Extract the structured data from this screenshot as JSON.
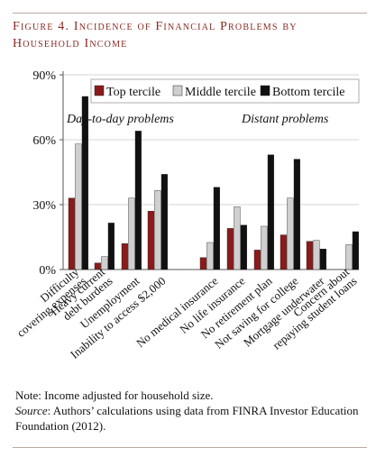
{
  "figure": {
    "title": "Figure 4. Incidence of Financial Problems by Household Income",
    "note": "Note: Income adjusted for household size.",
    "source_label": "Source",
    "source_text": ": Authors’ calculations using data from FINRA Investor Education Foundation (2012)."
  },
  "colors": {
    "top": "#8b1a1a",
    "middle": "#cfcfcf",
    "bottom": "#111111",
    "axis": "#555555",
    "title": "#8a2a21"
  },
  "chart_data": {
    "type": "bar",
    "title": "Figure 4. Incidence of Financial Problems by Household Income",
    "xlabel": "",
    "ylabel": "",
    "ylim": [
      0,
      90
    ],
    "yticks": [
      "0%",
      "30%",
      "60%",
      "90%"
    ],
    "ytick_values": [
      0,
      30,
      60,
      90
    ],
    "legend_position": "top-right",
    "group_labels": [
      "Day-to-day problems",
      "Distant problems"
    ],
    "categories": [
      "Difficulty covering expenses",
      "Heavy current debt burdens",
      "Unemployment",
      "Inability to access $2,000",
      "No medical insurance",
      "No life insurance",
      "No retirement plan",
      "Not saving for college",
      "Mortgage underwater",
      "Concern about repaying student loans"
    ],
    "category_lines": [
      [
        "Difficulty",
        "covering expenses"
      ],
      [
        "Heavy current",
        "debt burdens"
      ],
      [
        "Unemployment"
      ],
      [
        "Inability to access $2,000"
      ],
      [
        "No medical insurance"
      ],
      [
        "No life insurance"
      ],
      [
        "No retirement plan"
      ],
      [
        "Not saving for college"
      ],
      [
        "Mortgage underwater"
      ],
      [
        "Concern about",
        "repaying student loans"
      ]
    ],
    "series": [
      {
        "name": "Top tercile",
        "values": [
          33,
          3,
          12,
          27,
          5.5,
          19,
          9,
          16,
          13,
          0
        ]
      },
      {
        "name": "Middle tercile",
        "values": [
          58,
          6,
          33,
          36.5,
          12.5,
          29,
          20,
          33,
          13.5,
          11.5
        ]
      },
      {
        "name": "Bottom tercile",
        "values": [
          80,
          21.5,
          64,
          44,
          38,
          20.5,
          53,
          51,
          9.5,
          17.5
        ]
      }
    ]
  }
}
